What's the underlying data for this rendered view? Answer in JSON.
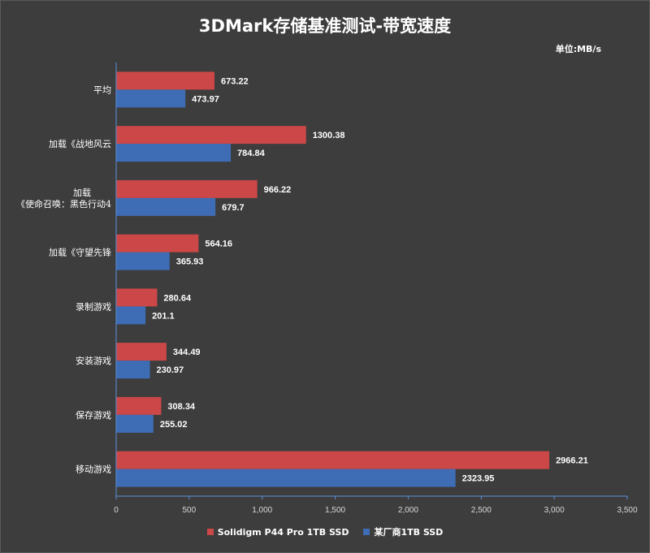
{
  "chart_data": {
    "type": "bar",
    "orientation": "horizontal",
    "title": "3DMark存储基准测试-带宽速度",
    "unit_label": "单位:MB/s",
    "categories": [
      [
        "平均"
      ],
      [
        "加载《战地风云"
      ],
      [
        "加载",
        "《使命召唤：黑色行动4"
      ],
      [
        "加载《守望先锋"
      ],
      [
        "录制游戏"
      ],
      [
        "安装游戏"
      ],
      [
        "保存游戏"
      ],
      [
        "移动游戏"
      ]
    ],
    "series": [
      {
        "name": "Solidigm P44 Pro 1TB SSD",
        "color": "#cc4747",
        "values": [
          673.22,
          1300.38,
          966.22,
          564.16,
          280.64,
          344.49,
          308.34,
          2966.21
        ]
      },
      {
        "name": "某厂商1TB SSD",
        "color": "#3e6db5",
        "values": [
          473.97,
          784.84,
          679.7,
          365.93,
          201.1,
          230.97,
          255.02,
          2323.95
        ]
      }
    ],
    "xlim": [
      0,
      3500
    ],
    "xticks": [
      0,
      500,
      1000,
      1500,
      2000,
      2500,
      3000,
      3500
    ],
    "xtick_labels": [
      "0",
      "500",
      "1,000",
      "1,500",
      "2,000",
      "2,500",
      "3,000",
      "3,500"
    ],
    "legend_position": "bottom-center",
    "grid": false
  }
}
